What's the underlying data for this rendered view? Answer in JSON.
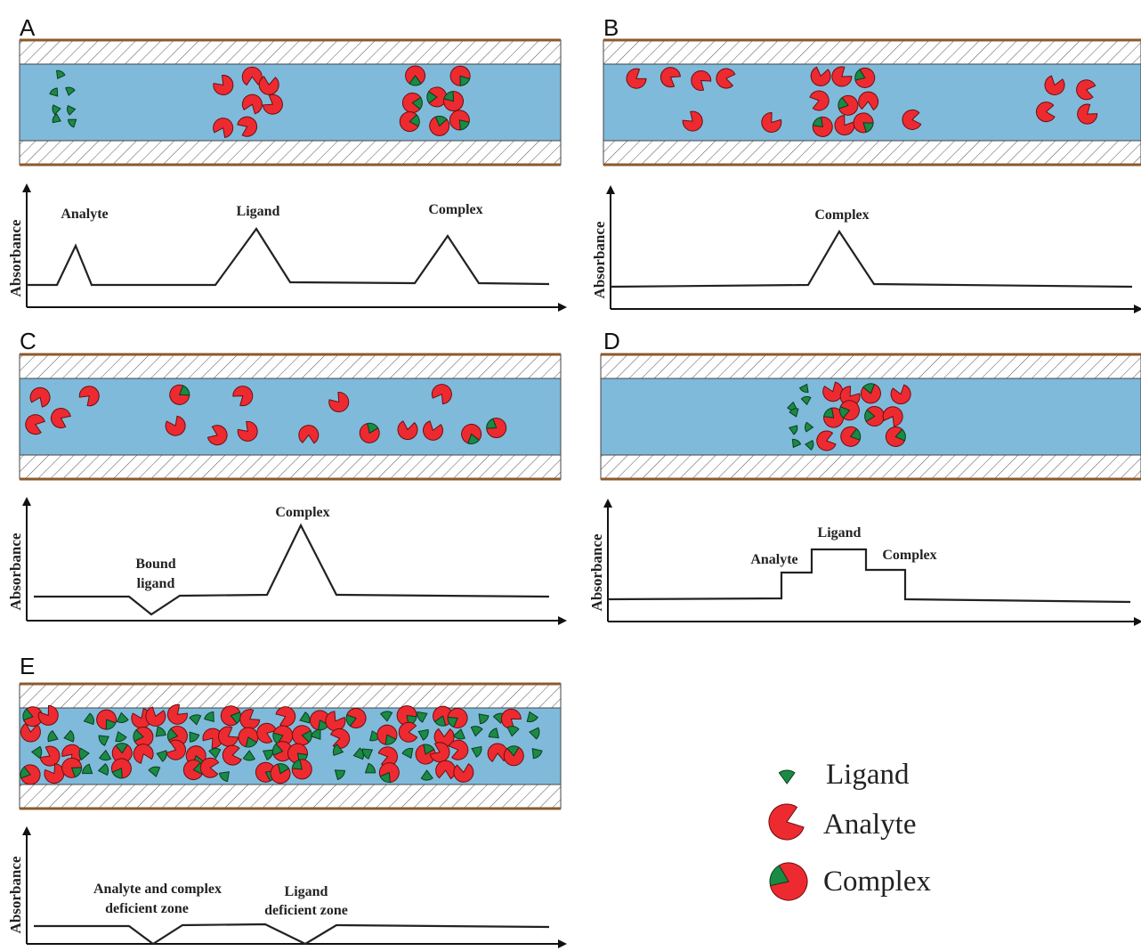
{
  "panels": [
    {
      "letter": "A",
      "y_axis_label": "Absorbance",
      "peak_labels": [
        {
          "lines": [
            "Analyte"
          ]
        },
        {
          "lines": [
            "Ligand"
          ]
        },
        {
          "lines": [
            "Complex"
          ]
        }
      ]
    },
    {
      "letter": "B",
      "y_axis_label": "Absorbance",
      "peak_labels": [
        {
          "lines": [
            "Complex"
          ]
        }
      ]
    },
    {
      "letter": "C",
      "y_axis_label": "Absorbance",
      "peak_labels": [
        {
          "lines": [
            "Bound",
            "ligand"
          ]
        },
        {
          "lines": [
            "Complex"
          ]
        }
      ]
    },
    {
      "letter": "D",
      "y_axis_label": "Absorbance",
      "peak_labels": [
        {
          "lines": [
            "Analyte"
          ]
        },
        {
          "lines": [
            "Ligand"
          ]
        },
        {
          "lines": [
            "Complex"
          ]
        }
      ]
    },
    {
      "letter": "E",
      "y_axis_label": "Absorbance",
      "peak_labels": [
        {
          "lines": [
            "Analyte and complex",
            "deficient zone"
          ]
        },
        {
          "lines": [
            "Ligand",
            "deficient zone"
          ]
        }
      ]
    }
  ],
  "legend": [
    {
      "label": "Ligand"
    },
    {
      "label": "Analyte"
    },
    {
      "label": "Complex"
    }
  ]
}
